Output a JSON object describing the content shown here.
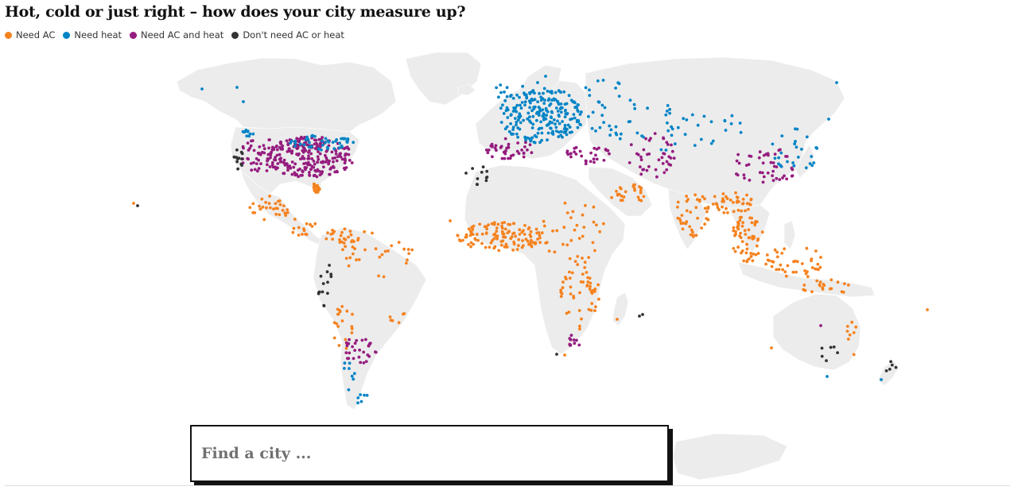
{
  "title": "Hot, cold or just right – how does your city measure up?",
  "legend": [
    {
      "label": "Need AC",
      "color": "#f5821f"
    },
    {
      "label": "Need heat",
      "color": "#0084c6"
    },
    {
      "label": "Need AC and heat",
      "color": "#951c7f"
    },
    {
      "label": "Don't need AC or heat",
      "color": "#333333"
    }
  ],
  "map": {
    "land_color": "#ececec",
    "border_color": "#ffffff",
    "projection": "equirectangular-like world map"
  },
  "search": {
    "placeholder": "Find a city ..."
  }
}
